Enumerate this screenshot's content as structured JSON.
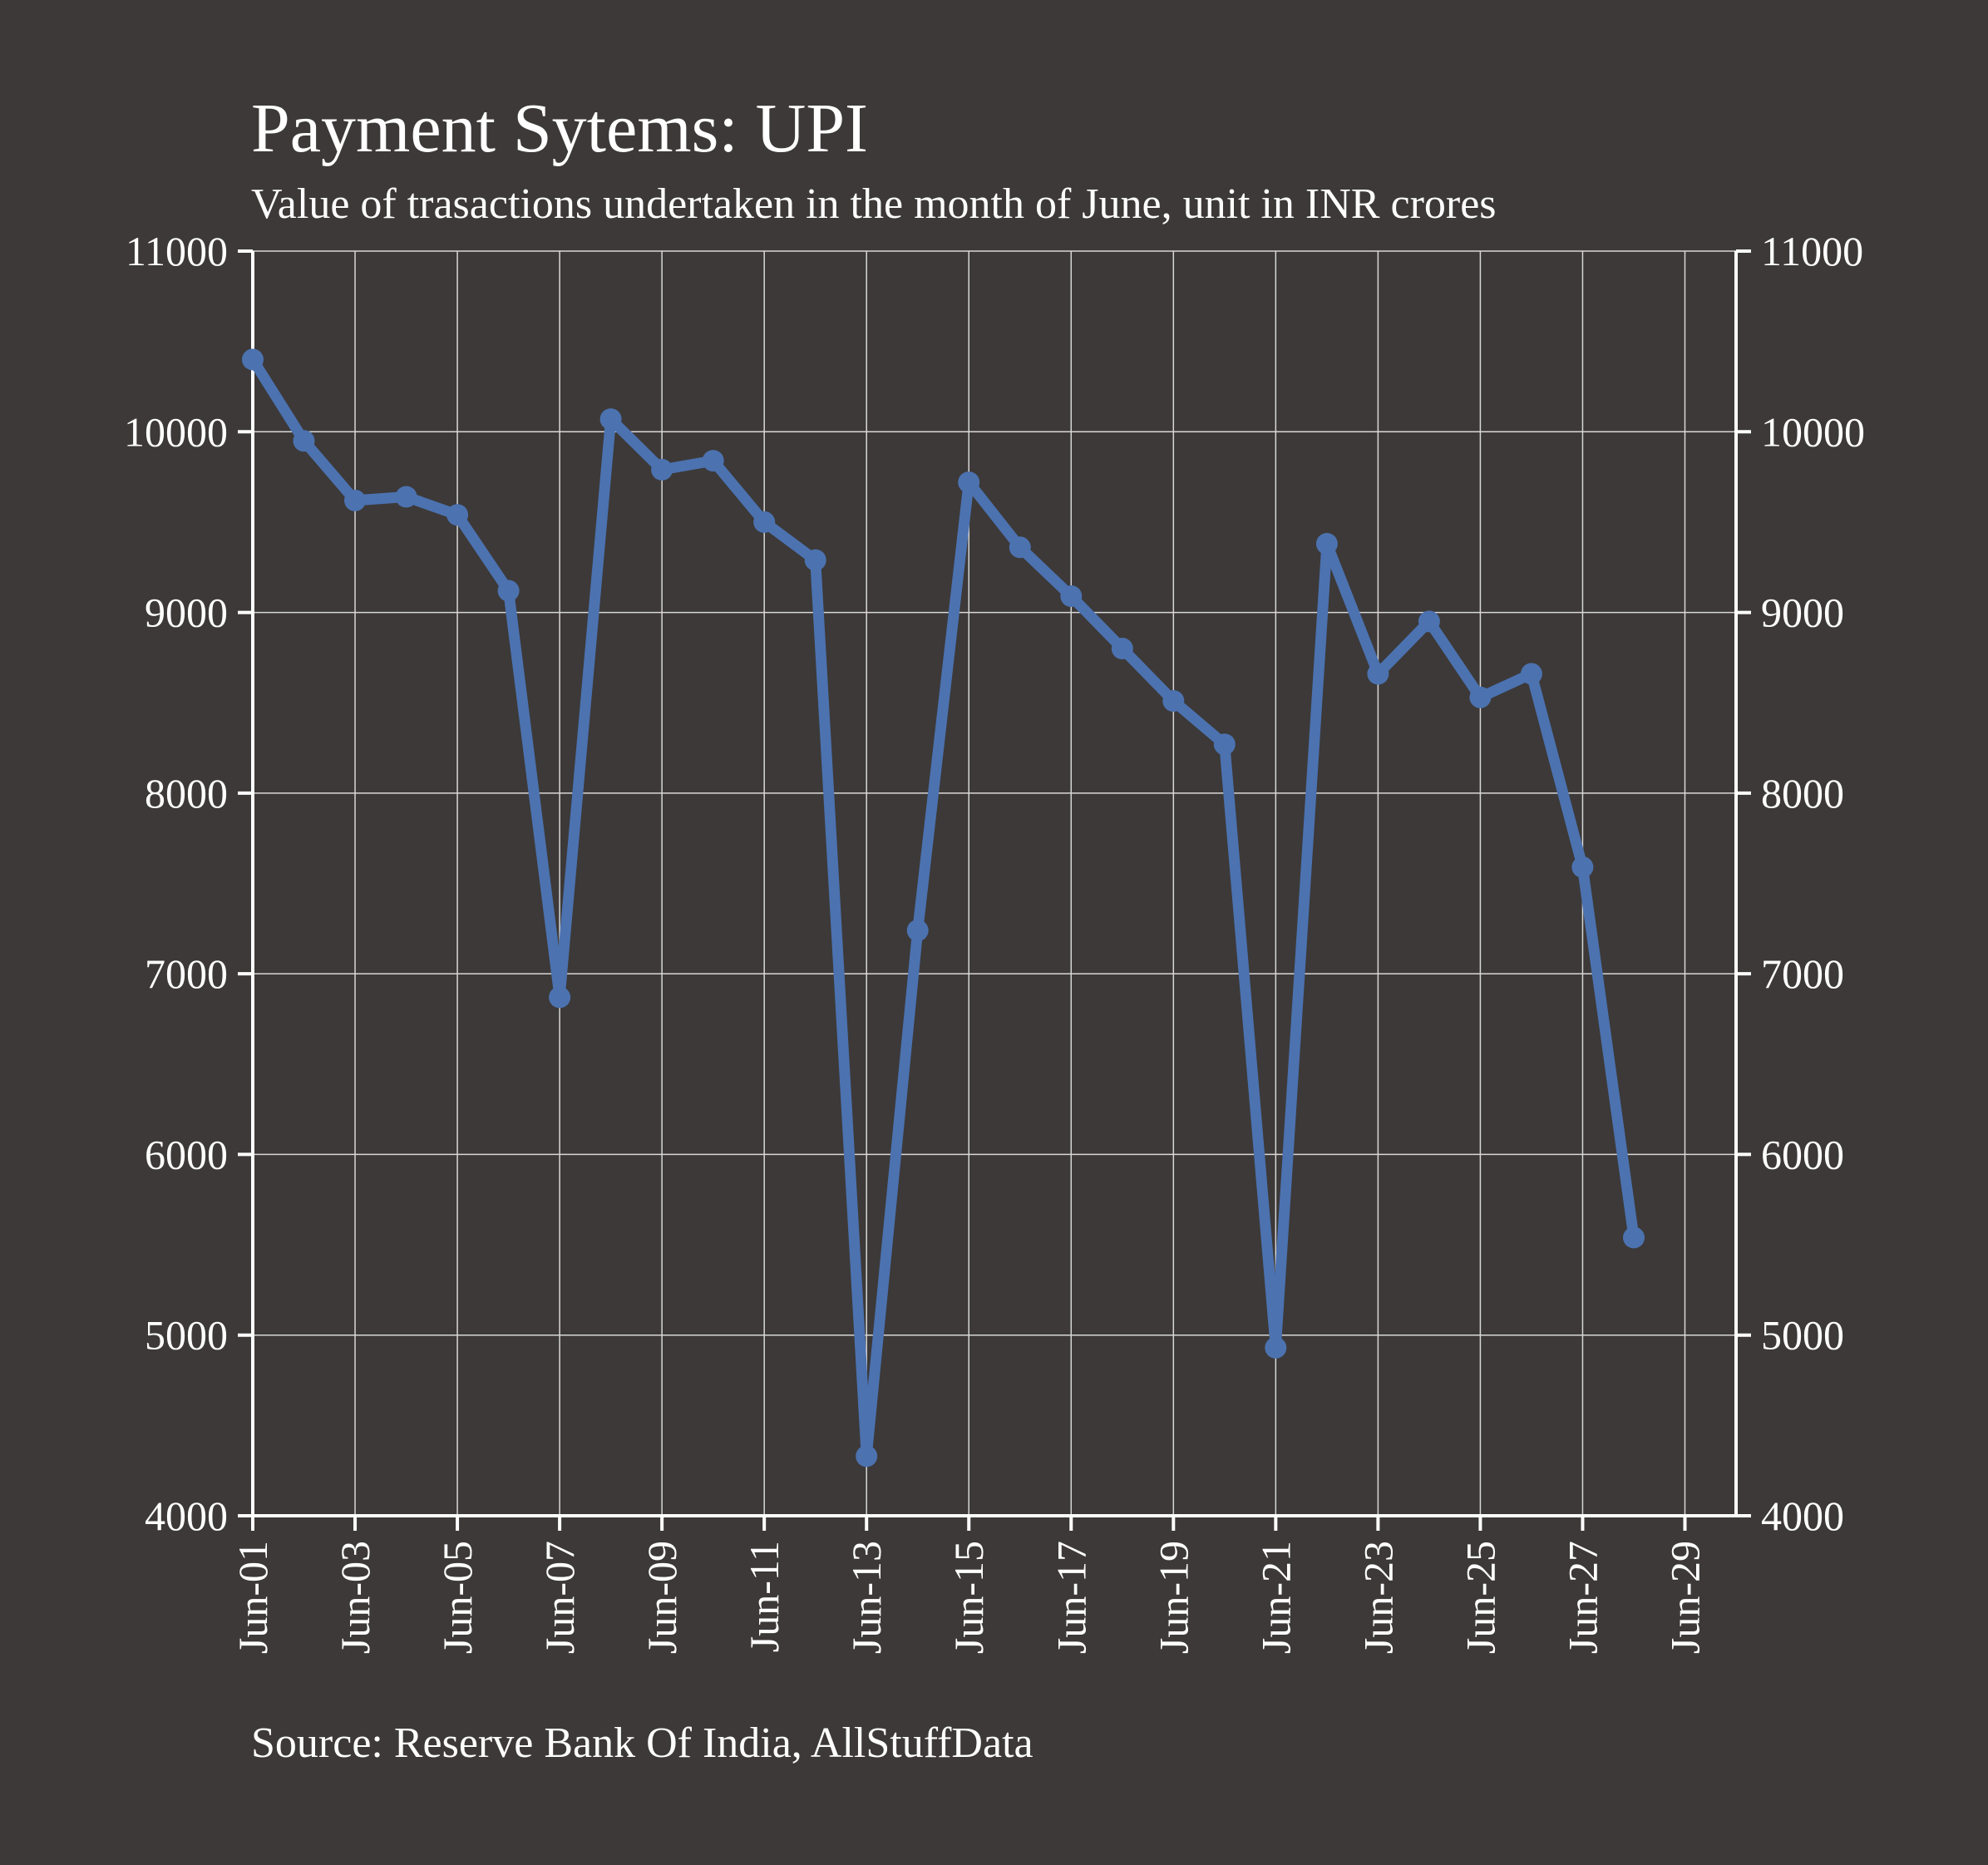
{
  "chart_data": {
    "type": "line",
    "title": "Payment Sytems: UPI",
    "subtitle": "Value of trasactions undertaken in the month of June, unit in INR crores",
    "source": "Source: Reserve Bank Of India, AllStuffData",
    "xlabel": "",
    "ylabel": "",
    "x_ticks": [
      "Jun-01",
      "Jun-03",
      "Jun-05",
      "Jun-07",
      "Jun-09",
      "Jun-11",
      "Jun-13",
      "Jun-15",
      "Jun-17",
      "Jun-19",
      "Jun-21",
      "Jun-23",
      "Jun-25",
      "Jun-27",
      "Jun-29"
    ],
    "y_ticks": [
      4000,
      5000,
      6000,
      7000,
      8000,
      9000,
      10000,
      11000
    ],
    "xlim": [
      1,
      30
    ],
    "ylim": [
      4000,
      11000
    ],
    "grid": true,
    "right_axis": true,
    "colors": {
      "background": "#3c3938",
      "line": "#4c72b0",
      "text": "#ffffff",
      "grid": "#d8d8d8"
    },
    "series": [
      {
        "x": [
          "Jun-01",
          "Jun-02",
          "Jun-03",
          "Jun-04",
          "Jun-05",
          "Jun-06",
          "Jun-07",
          "Jun-08",
          "Jun-09",
          "Jun-10",
          "Jun-11",
          "Jun-12",
          "Jun-13",
          "Jun-14",
          "Jun-15",
          "Jun-16",
          "Jun-17",
          "Jun-18",
          "Jun-19",
          "Jun-20",
          "Jun-21",
          "Jun-22",
          "Jun-23",
          "Jun-24",
          "Jun-25",
          "Jun-26",
          "Jun-27",
          "Jun-28"
        ],
        "values": [
          10400,
          9950,
          9620,
          9640,
          9540,
          9120,
          6870,
          10070,
          9790,
          9840,
          9500,
          9290,
          4330,
          7240,
          9720,
          9360,
          9090,
          8800,
          8510,
          8270,
          4930,
          9380,
          8660,
          8950,
          8530,
          8660,
          7590,
          5540
        ]
      }
    ]
  }
}
